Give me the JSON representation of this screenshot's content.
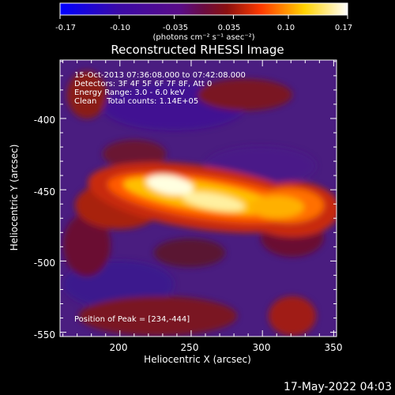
{
  "colorbar": {
    "ticks": [
      "-0.17",
      "-0.10",
      "-0.035",
      "0.035",
      "0.10",
      "0.17"
    ],
    "unit_label": "(photons cm⁻² s⁻¹ asec⁻²)",
    "range": [
      -0.17,
      0.17
    ],
    "colors": [
      "#0000ff",
      "#5a0c86",
      "#8a1010",
      "#ff3a00",
      "#ffd200",
      "#ffffff"
    ]
  },
  "chart_data": {
    "type": "heatmap",
    "title": "Reconstructed RHESSI Image",
    "xlabel": "Heliocentric X (arcsec)",
    "ylabel": "Heliocentric Y (arcsec)",
    "xlim": [
      158,
      352
    ],
    "ylim": [
      -553,
      -359
    ],
    "x_ticks": [
      "200",
      "250",
      "300",
      "350"
    ],
    "y_ticks": [
      "-400",
      "-450",
      "-500",
      "-550"
    ],
    "annotations": [
      "15-Oct-2013 07:36:08.000 to 07:42:08.000",
      "Detectors: 3F 4F 5F 6F 7F 8F, Att 0",
      "Energy Range: 3.0 - 6.0 keV",
      "Clean    Total counts: 1.14E+05"
    ],
    "peak_label": "Position of Peak = [234,-444]",
    "peak": [
      234,
      -444
    ]
  },
  "timestamp": "17-May-2022 04:03"
}
